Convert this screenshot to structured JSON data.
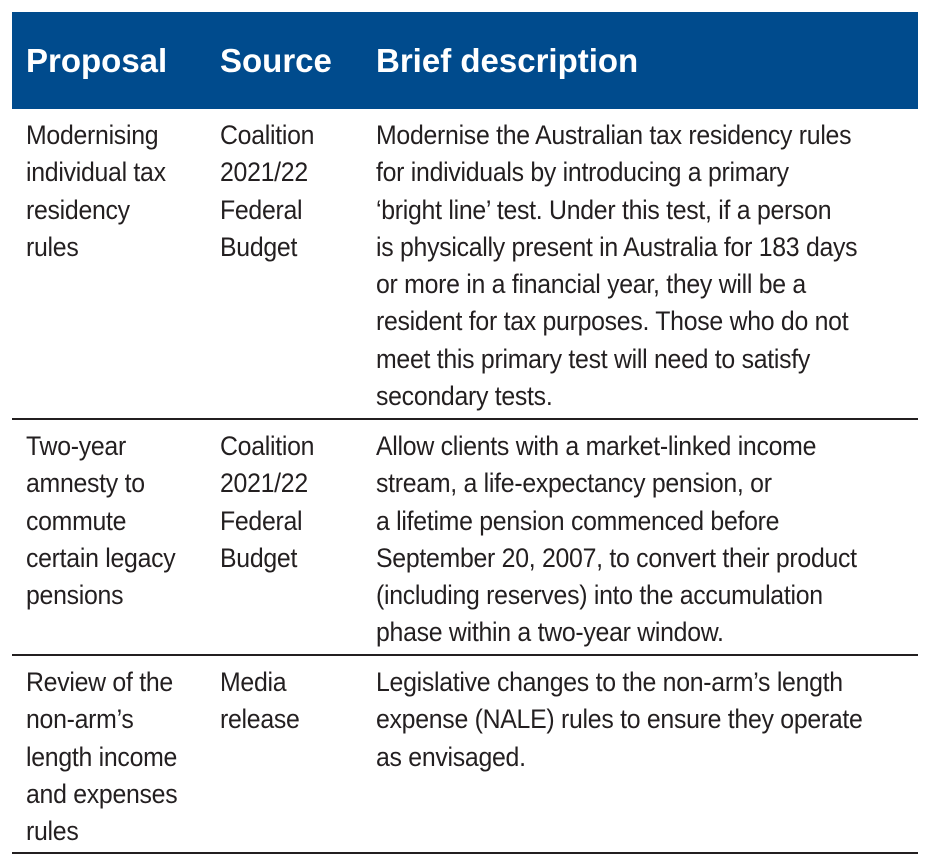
{
  "header": {
    "proposal": "Proposal",
    "source": "Source",
    "description": "Brief description"
  },
  "rows": [
    {
      "proposal": "Modernising\nindividual tax\nresidency\nrules",
      "source": "Coalition\n2021/22\nFederal\nBudget",
      "description": "Modernise the Australian tax residency rules\nfor individuals by introducing a primary\n‘bright line’ test. Under this test, if a person\nis physically present in Australia for 183 days\nor more in a financial year, they will be a\nresident for tax purposes. Those who do not\nmeet this primary test will need to satisfy\nsecondary tests."
    },
    {
      "proposal": "Two-year\namnesty to\ncommute\ncertain legacy\npensions",
      "source": "Coalition\n2021/22\nFederal\nBudget",
      "description": "Allow clients with a market-linked income\nstream, a life-expectancy pension, or\na lifetime pension commenced before\nSeptember 20, 2007, to convert their product\n(including reserves) into the accumulation\nphase within a two-year window."
    },
    {
      "proposal": "Review of the\nnon-arm’s\nlength income\nand expenses\nrules",
      "source": "Media\nrelease",
      "description": "Legislative changes to the non-arm’s length\nexpense (NALE) rules to ensure they operate\nas envisaged."
    }
  ],
  "colors": {
    "header_background": "#004b8d",
    "header_text": "#ffffff",
    "body_text": "#231f20",
    "rule": "#231f20"
  }
}
